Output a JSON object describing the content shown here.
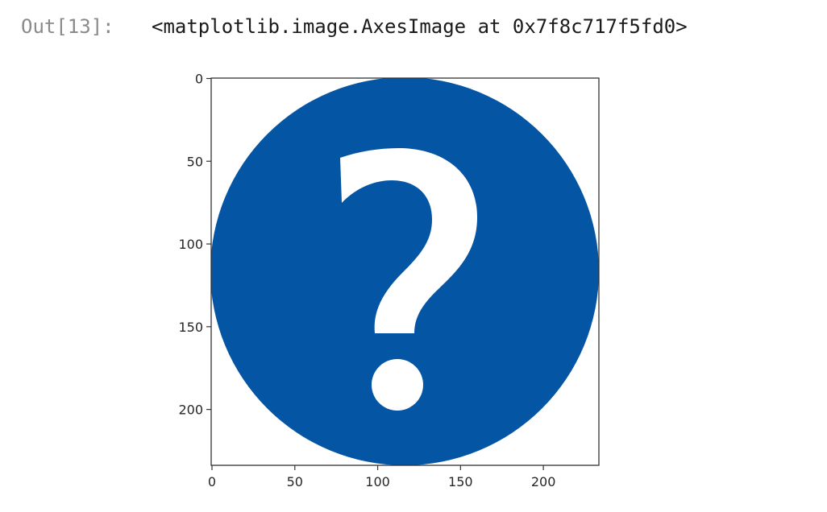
{
  "notebook": {
    "output_prompt": "Out[13]:",
    "output_repr": "<matplotlib.image.AxesImage at 0x7f8c717f5fd0>"
  },
  "plot": {
    "image_description_icon": "question-mark-circle-icon",
    "colors": {
      "circle": "#0455a4",
      "glyph": "#ffffff",
      "frame": "#333333"
    },
    "y_ticks": [
      {
        "value": 0,
        "label": "0"
      },
      {
        "value": 50,
        "label": "50"
      },
      {
        "value": 100,
        "label": "100"
      },
      {
        "value": 150,
        "label": "150"
      },
      {
        "value": 200,
        "label": "200"
      }
    ],
    "x_ticks": [
      {
        "value": 0,
        "label": "0"
      },
      {
        "value": 50,
        "label": "50"
      },
      {
        "value": 100,
        "label": "100"
      },
      {
        "value": 150,
        "label": "150"
      },
      {
        "value": 200,
        "label": "200"
      }
    ],
    "extent_x": [
      0,
      234
    ],
    "extent_y": [
      0,
      234
    ]
  }
}
